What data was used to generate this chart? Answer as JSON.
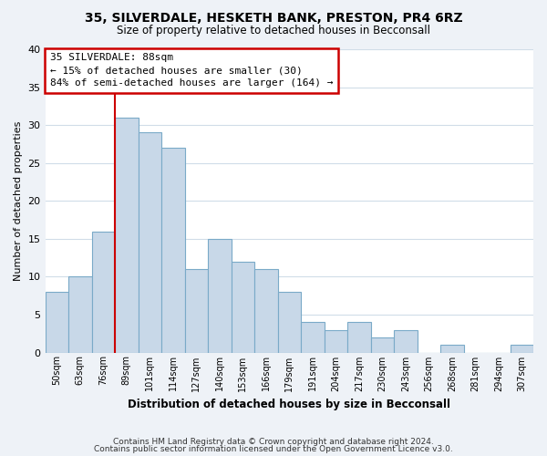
{
  "title": "35, SILVERDALE, HESKETH BANK, PRESTON, PR4 6RZ",
  "subtitle": "Size of property relative to detached houses in Becconsall",
  "xlabel": "Distribution of detached houses by size in Becconsall",
  "ylabel": "Number of detached properties",
  "bar_labels": [
    "50sqm",
    "63sqm",
    "76sqm",
    "89sqm",
    "101sqm",
    "114sqm",
    "127sqm",
    "140sqm",
    "153sqm",
    "166sqm",
    "179sqm",
    "191sqm",
    "204sqm",
    "217sqm",
    "230sqm",
    "243sqm",
    "256sqm",
    "268sqm",
    "281sqm",
    "294sqm",
    "307sqm"
  ],
  "bar_values": [
    8,
    10,
    16,
    31,
    29,
    27,
    11,
    15,
    12,
    11,
    8,
    4,
    3,
    4,
    2,
    3,
    0,
    1,
    0,
    0,
    1
  ],
  "bar_color": "#c8d8e8",
  "bar_edge_color": "#7aaac8",
  "ylim": [
    0,
    40
  ],
  "yticks": [
    0,
    5,
    10,
    15,
    20,
    25,
    30,
    35,
    40
  ],
  "annotation_title": "35 SILVERDALE: 88sqm",
  "annotation_line1": "← 15% of detached houses are smaller (30)",
  "annotation_line2": "84% of semi-detached houses are larger (164) →",
  "annotation_box_color": "#ffffff",
  "annotation_box_edge_color": "#cc0000",
  "red_line_color": "#cc0000",
  "footer1": "Contains HM Land Registry data © Crown copyright and database right 2024.",
  "footer2": "Contains public sector information licensed under the Open Government Licence v3.0.",
  "bg_color": "#eef2f7",
  "plot_bg_color": "#ffffff",
  "grid_color": "#d0dde8"
}
